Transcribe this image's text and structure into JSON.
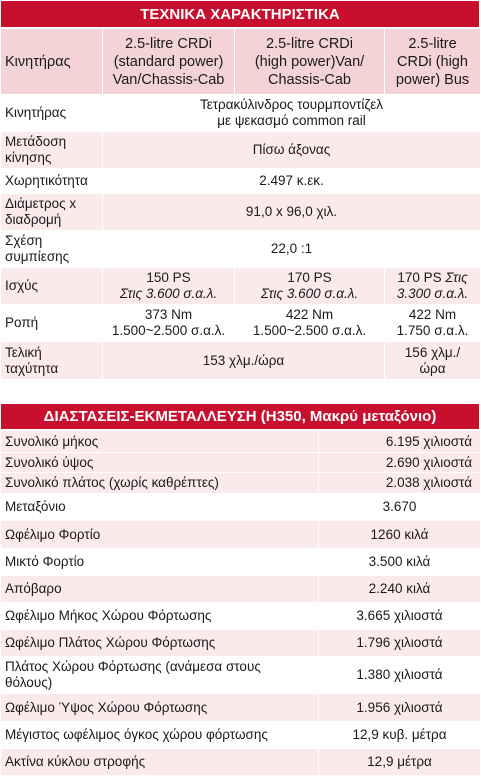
{
  "spec": {
    "title": "ΤΕΧΝΙΚΑ ΧΑΡΑΚΤΗΡΙΣΤΙΚΑ",
    "header": {
      "label": "Κινητήρας",
      "columns": [
        [
          "2.5-litre CRDi",
          "(standard power)",
          "Van/Chassis-Cab"
        ],
        [
          "2.5-litre CRDi",
          "(high power)Van/",
          "Chassis-Cab"
        ],
        [
          "2.5-litre",
          "CRDi (high",
          "power) Bus"
        ]
      ]
    },
    "engine": {
      "label": "Κινητήρας",
      "value_line1": "Τετρακύλινδρος τουρμποντίζελ",
      "value_line2": "με ψεκασμό common rail"
    },
    "drive": {
      "label_line1": "Μετάδοση",
      "label_line2": "κίνησης",
      "value": "Πίσω άξονας"
    },
    "capacity": {
      "label": "Χωρητικότητα",
      "value": "2.497 κ.εκ."
    },
    "bore": {
      "label_line1": "Διάμετρος x",
      "label_line2": "διαδρομή",
      "value": "91,0 x 96,0 χιλ."
    },
    "compression": {
      "label_line1": "Σχέση",
      "label_line2": "συμπίεσης",
      "value": "22,0 :1"
    },
    "power": {
      "label": "Ισχύς",
      "c1": {
        "main": "150 PS",
        "sub": "Στις 3.600 σ.α.λ."
      },
      "c2": {
        "main": "170 PS",
        "sub": "Στις 3.600 σ.α.λ."
      },
      "c3": {
        "main": "170 PS",
        "sub1": "Στις",
        "sub2": "3.300 σ.α.λ."
      }
    },
    "torque": {
      "label": "Ροπή",
      "c1": {
        "main": "373 Nm",
        "sub": "1.500~2.500 σ.α.λ."
      },
      "c2": {
        "main": "422 Nm",
        "sub": "1.500~2.500 σ.α.λ."
      },
      "c3": {
        "main": "422 Nm",
        "sub": "1.750 σ.α.λ."
      }
    },
    "speed": {
      "label_line1": "Τελική",
      "label_line2": "ταχύτητα",
      "value_van": "153 χλμ./ώρα",
      "value_bus_line1": "156 χλμ./",
      "value_bus_line2": "ώρα"
    }
  },
  "dims": {
    "title": "ΔΙΑΣΤΑΣΕΙΣ-ΕΚΜΕΤΑΛΛΕΥΣΗ (H350, Μακρύ μεταξόνιο)",
    "rows": [
      {
        "label": "Συνολικό μήκος",
        "value": "6.195 χιλιοστά"
      },
      {
        "label": "Συνολικό ύψος",
        "value": "2.690 χιλιοστά"
      },
      {
        "label": "Συνολικό πλάτος (χωρίς καθρέπτες)",
        "value": "2.038 χιλιοστά"
      },
      {
        "label": "Μεταξόνιο",
        "value": "3.670"
      },
      {
        "label": "Ωφέλιμο Φορτίο",
        "value": "1260 κιλά"
      },
      {
        "label": "Μικτό Φορτίο",
        "value": "3.500 κιλά"
      },
      {
        "label": "Απόβαρο",
        "value": "2.240 κιλά"
      },
      {
        "label": "Ωφέλιμο Μήκος Χώρου Φόρτωσης",
        "value": "3.665 χιλιοστά"
      },
      {
        "label": "Ωφέλιμο Πλάτος Χώρου Φόρτωσης",
        "value": "1.796 χιλιοστά"
      },
      {
        "label": "Πλάτος Χώρου Φόρτωσης (ανάμεσα στους",
        "label2": "θόλους)",
        "value": "1.380 χιλιοστά"
      },
      {
        "label": "Ωφέλιμο Ύψος Χώρου Φόρτωσης",
        "value": "1.956 χιλιοστά"
      },
      {
        "label": "Μέγιστος ωφέλιμος όγκος χώρου φόρτωσης",
        "value": "12,9 κυβ. μέτρα"
      },
      {
        "label": "Ακτίνα κύκλου στροφής",
        "value": "12,9 μέτρα"
      }
    ]
  }
}
